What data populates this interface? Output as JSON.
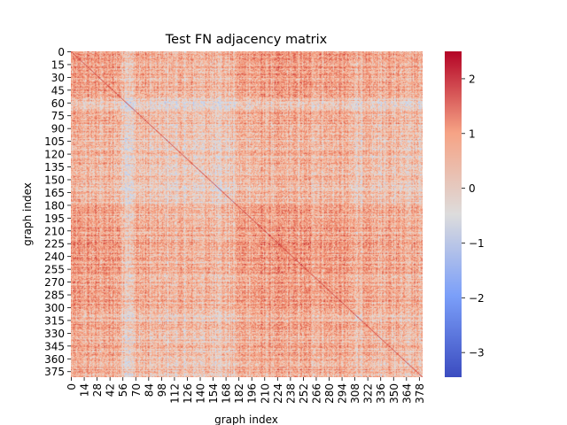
{
  "chart_data": {
    "type": "heatmap",
    "title": "Test FN adjacency matrix",
    "xlabel": "graph index",
    "ylabel": "graph index",
    "n": 382,
    "x_ticks": [
      0,
      14,
      28,
      42,
      56,
      70,
      84,
      98,
      112,
      126,
      140,
      154,
      168,
      182,
      196,
      210,
      224,
      238,
      252,
      266,
      280,
      294,
      308,
      322,
      336,
      350,
      364,
      378
    ],
    "y_ticks": [
      0,
      15,
      30,
      45,
      60,
      75,
      90,
      105,
      120,
      135,
      150,
      165,
      180,
      195,
      210,
      225,
      240,
      255,
      270,
      285,
      300,
      315,
      330,
      345,
      360,
      375
    ],
    "colorbar": {
      "colormap": "coolwarm",
      "vmin": -3.45,
      "vmax": 2.5,
      "ticks": [
        2,
        1,
        0,
        -1,
        -2,
        -3
      ],
      "tick_labels": [
        "2",
        "1",
        "0",
        "−1",
        "−2",
        "−3"
      ]
    },
    "value_pattern": {
      "note_free_values": true,
      "node_mean_bands": [
        {
          "from": 0,
          "to": 55,
          "mean": 0.7
        },
        {
          "from": 55,
          "to": 70,
          "mean": -0.3
        },
        {
          "from": 70,
          "to": 85,
          "mean": 0.4
        },
        {
          "from": 85,
          "to": 180,
          "mean": 0.05
        },
        {
          "from": 180,
          "to": 300,
          "mean": 0.75
        },
        {
          "from": 300,
          "to": 345,
          "mean": 0.3
        },
        {
          "from": 345,
          "to": 382,
          "mean": 0.45
        }
      ],
      "noise": 0.75,
      "diagonal": 2.0
    }
  }
}
